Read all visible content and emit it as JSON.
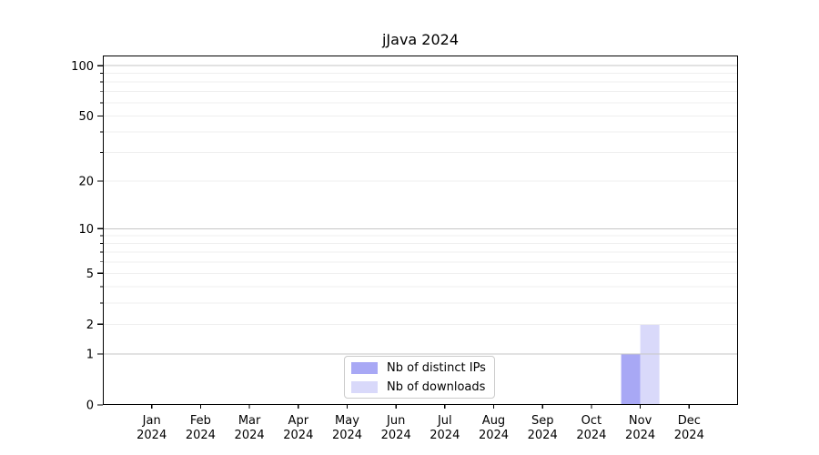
{
  "title": "jJava 2024",
  "chart_data": {
    "type": "bar",
    "title": "jJava 2024",
    "categories": [
      "Jan 2024",
      "Feb 2024",
      "Mar 2024",
      "Apr 2024",
      "May 2024",
      "Jun 2024",
      "Jul 2024",
      "Aug 2024",
      "Sep 2024",
      "Oct 2024",
      "Nov 2024",
      "Dec 2024"
    ],
    "series": [
      {
        "name": "Nb of distinct IPs",
        "color": "#a8a8f5",
        "values": [
          0,
          0,
          0,
          0,
          0,
          0,
          0,
          0,
          0,
          0,
          1,
          0
        ]
      },
      {
        "name": "Nb of downloads",
        "color": "#d9d9fa",
        "values": [
          0,
          0,
          0,
          0,
          0,
          0,
          0,
          0,
          0,
          0,
          2,
          0
        ]
      }
    ],
    "xlabel": "",
    "ylabel": "",
    "y_axis": {
      "scale": "log1p",
      "max": 115,
      "tick_values": [
        0,
        1,
        2,
        5,
        10,
        20,
        50,
        100
      ],
      "tick_labels": [
        "0",
        "1",
        "2",
        "5",
        "10",
        "20",
        "50",
        "100"
      ],
      "major_gridlines": [
        1,
        10,
        100
      ],
      "minor_gridlines": [
        2,
        3,
        4,
        5,
        6,
        7,
        8,
        9,
        20,
        30,
        40,
        50,
        60,
        70,
        80,
        90
      ],
      "minor_tick_values": [
        3,
        4,
        6,
        7,
        8,
        9,
        30,
        40,
        60,
        70,
        80,
        90
      ]
    },
    "grid": true,
    "legend_position": "lower center",
    "colors": {
      "grid_major": "#c6c6c6",
      "grid_minor": "#efefef",
      "spine": "#000000",
      "text": "#000000",
      "background": "#ffffff"
    }
  }
}
